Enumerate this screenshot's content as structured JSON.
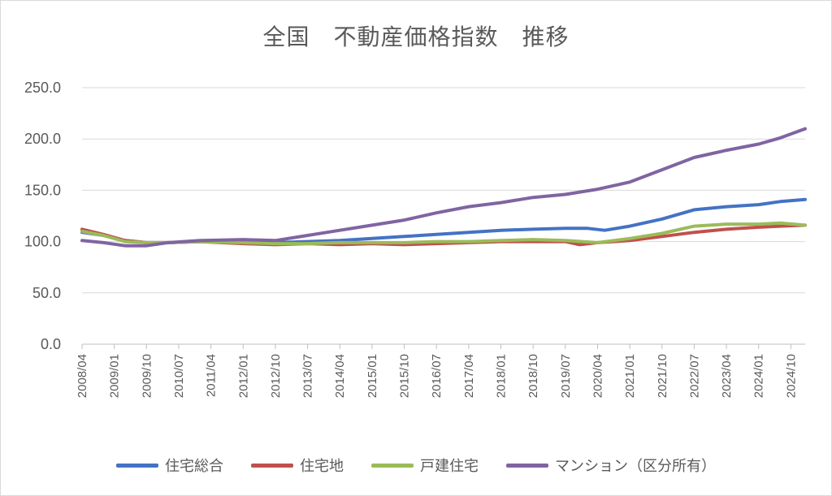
{
  "chart_data": {
    "type": "line",
    "title": "全国　不動産価格指数　推移",
    "ylim": [
      0,
      250
    ],
    "yticks": [
      "0.0",
      "50.0",
      "100.0",
      "150.0",
      "200.0",
      "250.0"
    ],
    "xticks": [
      "2008/04",
      "2009/01",
      "2009/10",
      "2010/07",
      "2011/04",
      "2012/01",
      "2012/10",
      "2013/07",
      "2014/04",
      "2015/01",
      "2015/10",
      "2016/07",
      "2017/04",
      "2018/01",
      "2018/10",
      "2019/07",
      "2020/04",
      "2021/01",
      "2021/10",
      "2022/07",
      "2023/04",
      "2024/01",
      "2024/10"
    ],
    "x_range": [
      "2008/04",
      "2025/02"
    ],
    "grid": true,
    "legend_position": "bottom",
    "series": [
      {
        "name": "住宅総合",
        "color": "#4472c4",
        "points": [
          [
            "2008/04",
            109
          ],
          [
            "2008/10",
            106
          ],
          [
            "2009/04",
            101
          ],
          [
            "2009/10",
            99
          ],
          [
            "2010/04",
            99
          ],
          [
            "2011/01",
            100
          ],
          [
            "2012/01",
            100
          ],
          [
            "2012/10",
            99
          ],
          [
            "2013/07",
            100
          ],
          [
            "2014/04",
            101
          ],
          [
            "2015/01",
            103
          ],
          [
            "2015/10",
            105
          ],
          [
            "2016/07",
            107
          ],
          [
            "2017/04",
            109
          ],
          [
            "2018/01",
            111
          ],
          [
            "2018/10",
            112
          ],
          [
            "2019/07",
            113
          ],
          [
            "2020/01",
            113
          ],
          [
            "2020/06",
            111
          ],
          [
            "2021/01",
            115
          ],
          [
            "2021/10",
            122
          ],
          [
            "2022/07",
            131
          ],
          [
            "2023/04",
            134
          ],
          [
            "2024/01",
            136
          ],
          [
            "2024/07",
            139
          ],
          [
            "2025/02",
            141
          ]
        ]
      },
      {
        "name": "住宅地",
        "color": "#c0504d",
        "points": [
          [
            "2008/04",
            112
          ],
          [
            "2008/10",
            107
          ],
          [
            "2009/04",
            101
          ],
          [
            "2009/10",
            99
          ],
          [
            "2010/04",
            99
          ],
          [
            "2011/01",
            100
          ],
          [
            "2012/01",
            98
          ],
          [
            "2012/10",
            97
          ],
          [
            "2013/07",
            98
          ],
          [
            "2014/04",
            97
          ],
          [
            "2015/01",
            98
          ],
          [
            "2015/10",
            97
          ],
          [
            "2016/07",
            98
          ],
          [
            "2017/04",
            99
          ],
          [
            "2018/01",
            100
          ],
          [
            "2018/10",
            100
          ],
          [
            "2019/07",
            100
          ],
          [
            "2019/11",
            97
          ],
          [
            "2020/04",
            99
          ],
          [
            "2021/01",
            101
          ],
          [
            "2021/10",
            105
          ],
          [
            "2022/07",
            109
          ],
          [
            "2023/04",
            112
          ],
          [
            "2024/01",
            114
          ],
          [
            "2024/07",
            115
          ],
          [
            "2025/02",
            116
          ]
        ]
      },
      {
        "name": "戸建住宅",
        "color": "#9bbb59",
        "points": [
          [
            "2008/04",
            110
          ],
          [
            "2008/10",
            106
          ],
          [
            "2009/04",
            100
          ],
          [
            "2009/10",
            99
          ],
          [
            "2010/04",
            99
          ],
          [
            "2011/01",
            100
          ],
          [
            "2012/01",
            99
          ],
          [
            "2012/10",
            98
          ],
          [
            "2013/07",
            98
          ],
          [
            "2014/04",
            99
          ],
          [
            "2015/01",
            99
          ],
          [
            "2015/10",
            99
          ],
          [
            "2016/07",
            100
          ],
          [
            "2017/04",
            100
          ],
          [
            "2018/01",
            101
          ],
          [
            "2018/10",
            102
          ],
          [
            "2019/07",
            101
          ],
          [
            "2020/04",
            99
          ],
          [
            "2021/01",
            103
          ],
          [
            "2021/10",
            108
          ],
          [
            "2022/07",
            115
          ],
          [
            "2023/04",
            117
          ],
          [
            "2024/01",
            117
          ],
          [
            "2024/07",
            118
          ],
          [
            "2025/02",
            116
          ]
        ]
      },
      {
        "name": "マンション（区分所有）",
        "color": "#8064a2",
        "points": [
          [
            "2008/04",
            101
          ],
          [
            "2008/10",
            99
          ],
          [
            "2009/04",
            96
          ],
          [
            "2009/10",
            96
          ],
          [
            "2010/04",
            99
          ],
          [
            "2011/01",
            101
          ],
          [
            "2012/01",
            102
          ],
          [
            "2012/10",
            101
          ],
          [
            "2013/07",
            106
          ],
          [
            "2014/04",
            111
          ],
          [
            "2015/01",
            116
          ],
          [
            "2015/10",
            121
          ],
          [
            "2016/07",
            128
          ],
          [
            "2017/04",
            134
          ],
          [
            "2018/01",
            138
          ],
          [
            "2018/10",
            143
          ],
          [
            "2019/07",
            146
          ],
          [
            "2020/04",
            151
          ],
          [
            "2021/01",
            158
          ],
          [
            "2021/10",
            170
          ],
          [
            "2022/07",
            182
          ],
          [
            "2023/04",
            189
          ],
          [
            "2024/01",
            195
          ],
          [
            "2024/07",
            201
          ],
          [
            "2025/02",
            210
          ]
        ]
      }
    ]
  }
}
